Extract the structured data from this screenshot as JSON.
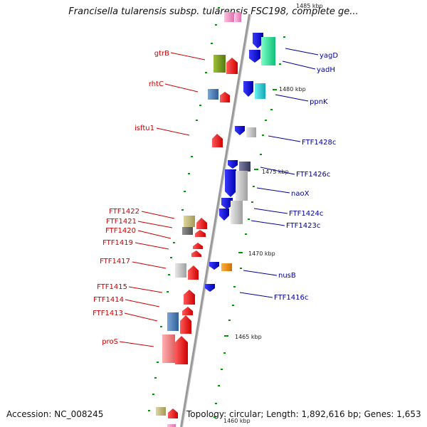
{
  "title": "Francisella tularensis subsp. tularensis FSC198, complete ge...",
  "footer": {
    "accession": "Accession: NC_008245",
    "summary": "Topology: circular; Length: 1,892,616 bp; Genes: 1,653"
  },
  "tick_labels": [
    "1485 kbp",
    "1480 kbp",
    "1475 kbp",
    "1470 kbp",
    "1465 kbp",
    "1460 kbp"
  ],
  "genes_left": [
    "gtrB",
    "rhtC",
    "isftu1",
    "FTF1422",
    "FTF1421",
    "FTF1420",
    "FTF1419",
    "FTF1417",
    "FTF1415",
    "FTF1414",
    "FTF1413",
    "proS"
  ],
  "genes_right": [
    "yagD",
    "yadH",
    "ppnK",
    "FTF1428c",
    "FTF1426c",
    "naoX",
    "FTF1424c",
    "FTF1423c",
    "nusB",
    "FTF1416c"
  ],
  "colors": {
    "forward_strand": "#ff0000",
    "reverse_strand": "#0000ff",
    "left_label": "#cc0000",
    "right_label": "#000099",
    "backbone": "#8a8a8a",
    "tick": "#009900"
  }
}
